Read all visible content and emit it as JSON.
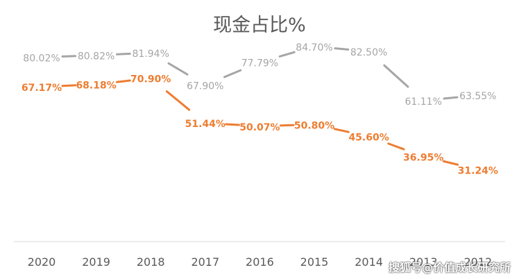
{
  "chart_data": {
    "type": "line",
    "title": "现金占比%",
    "categories": [
      "2020",
      "2019",
      "2018",
      "2017",
      "2016",
      "2015",
      "2014",
      "2013",
      "2012"
    ],
    "series": [
      {
        "color": "#A5A5A5",
        "values": [
          80.02,
          80.82,
          81.94,
          67.9,
          77.79,
          84.7,
          82.5,
          61.11,
          63.55
        ],
        "labels": [
          "80.02%",
          "80.82%",
          "81.94%",
          "67.90%",
          "77.79%",
          "84.70%",
          "82.50%",
          "61.11%",
          "63.55%"
        ]
      },
      {
        "color": "#ED7D31",
        "values": [
          67.17,
          68.18,
          70.9,
          51.44,
          50.07,
          50.8,
          45.6,
          36.95,
          31.24
        ],
        "labels": [
          "67.17%",
          "68.18%",
          "70.90%",
          "51.44%",
          "50.07%",
          "50.80%",
          "45.60%",
          "36.95%",
          "31.24%"
        ]
      }
    ],
    "xlabel": "",
    "ylabel": "",
    "ylim": [
      0,
      100
    ],
    "grid": false,
    "legend": "none"
  },
  "watermark": "搜狐号@价值成长研究所"
}
